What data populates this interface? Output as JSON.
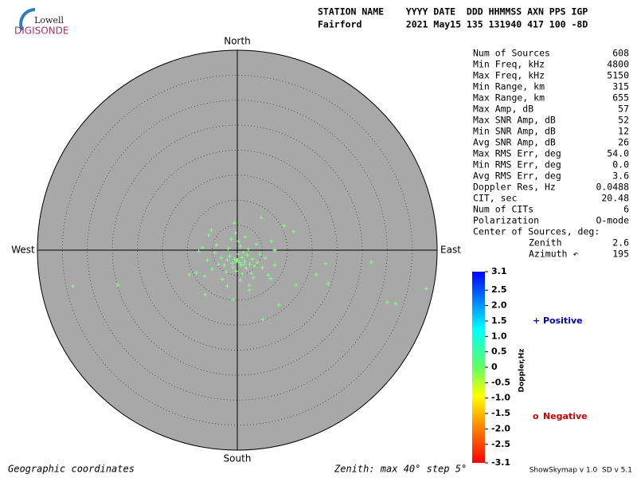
{
  "header": {
    "logo_top": "Lowell",
    "logo_bottom": "DIGISONDE",
    "line1": "STATION NAME    YYYY DATE  DDD HHMMSS AXN PPS IGP",
    "line2": "Fairford        2021 May15 135 131940 417 100 -8D"
  },
  "stats": {
    "rows": [
      [
        "Num of Sources",
        "608"
      ],
      [
        "Min Freq, kHz",
        "4800"
      ],
      [
        "Max Freq, kHz",
        "5150"
      ],
      [
        "Min Range, km",
        "315"
      ],
      [
        "Max Range, km",
        "655"
      ],
      [
        "Max Amp, dB",
        "57"
      ],
      [
        "Max SNR Amp, dB",
        "52"
      ],
      [
        "Min SNR Amp, dB",
        "12"
      ],
      [
        "Avg SNR Amp, dB",
        "26"
      ],
      [
        "Max RMS Err, deg",
        "54.0"
      ],
      [
        "Min RMS Err, deg",
        "0.0"
      ],
      [
        "Avg RMS Err, deg",
        "3.6"
      ],
      [
        "Doppler Res, Hz",
        "0.0488"
      ],
      [
        "CIT, sec",
        "20.48"
      ],
      [
        "Num of CITs",
        "6"
      ],
      [
        "Polarization",
        "O-mode"
      ]
    ],
    "center_label": "Center of Sources, deg:",
    "center_rows": [
      [
        "Zenith",
        "2.6"
      ],
      [
        "Azimuth ↶",
        "195"
      ]
    ]
  },
  "footer": {
    "left": "Geographic coordinates",
    "middle": "Zenith: max 40°  step 5°",
    "right": "ShowSkymap v 1.0  SD v 5.1"
  },
  "chart_data": {
    "type": "scatter",
    "directions": {
      "north": "North",
      "south": "South",
      "east": "East",
      "west": "West"
    },
    "rlim": [
      0,
      40
    ],
    "rticks": [
      5,
      10,
      15,
      20,
      25,
      30,
      35,
      40
    ],
    "series": [
      {
        "color": "#80ff80",
        "x": [
          -32.9,
          -23.9,
          17.7,
          15.8,
          18.2,
          26.8,
          30.0,
          31.7,
          37.8,
          5.1,
          8.3,
          11.8,
          4.8,
          -0.6,
          9.4,
          11.3,
          -5.7,
          -9.6,
          -6.4,
          -0.8,
          2.4,
          6.7,
          -7.7,
          7.5,
          0,
          0.5,
          1,
          -0.5,
          1.5,
          -1,
          2,
          0.8,
          -1.5,
          2.5,
          -2,
          0.2,
          1.2,
          -0.8,
          3,
          -2.6,
          1.8,
          -0.3,
          3.5,
          -3.2,
          2.2,
          -1.8,
          0.6,
          4,
          -3.8,
          1,
          -2.2,
          2.8,
          4.5,
          -4.5,
          0.3,
          -1.2,
          1.6,
          5,
          -5,
          3.2,
          -3,
          0.6,
          5.6,
          -6,
          -4.2,
          3.8,
          -0.4,
          2.4,
          -2,
          6.2,
          -6.5,
          -7,
          6.8,
          -8.2,
          7.5,
          -5.2,
          1.4,
          -0.2
        ],
        "values": [
          -7.2,
          -7.0,
          -2.7,
          -4.9,
          -6.7,
          -2.4,
          -10.4,
          -10.7,
          -7.7,
          -13.9,
          -11.0,
          -7.0,
          6.5,
          5.4,
          4.9,
          3.7,
          3.0,
          -4.9,
          -8.9,
          -9.9,
          -8.0,
          -5.7,
          -0.2,
          0,
          -2,
          -2.5,
          -1.5,
          -1.8,
          -2.2,
          -2.6,
          -1,
          -3,
          -1.2,
          -2.8,
          -2,
          -0.8,
          -0.5,
          -3.4,
          -1.8,
          -3,
          -3.6,
          -4.2,
          -3.2,
          -1.5,
          0.2,
          0.3,
          0.8,
          -2.5,
          -2.8,
          -4.8,
          -4.4,
          -4.6,
          -0.8,
          -0.5,
          1.8,
          2.2,
          2.6,
          -3.5,
          -3.8,
          -5.5,
          -5.8,
          -6,
          -1.6,
          -2,
          1,
          1.2,
          3.4,
          -7,
          -7.2,
          -5,
          -5.2,
          0.5,
          1.8,
          -4.5,
          -3,
          4,
          -2.8,
          -2.4
        ]
      }
    ],
    "colorbar": {
      "label": "Doppler,Hz",
      "lim": [
        -3.1,
        3.1
      ],
      "ticks": [
        3.1,
        2.5,
        {
          "value": 2,
          "label": "2.0"
        },
        1.5,
        {
          "value": 1,
          "label": "1.0"
        },
        0.5,
        0,
        -0.5,
        {
          "value": -1,
          "label": "-1.0"
        },
        -1.5,
        {
          "value": -2,
          "label": "-2.0"
        },
        -2.5,
        -3.1
      ]
    },
    "legend": [
      {
        "symbol": "+",
        "label": "Positive",
        "color": "#0000c0"
      },
      {
        "symbol": "o",
        "label": "Negative",
        "color": "#d00000"
      }
    ]
  }
}
